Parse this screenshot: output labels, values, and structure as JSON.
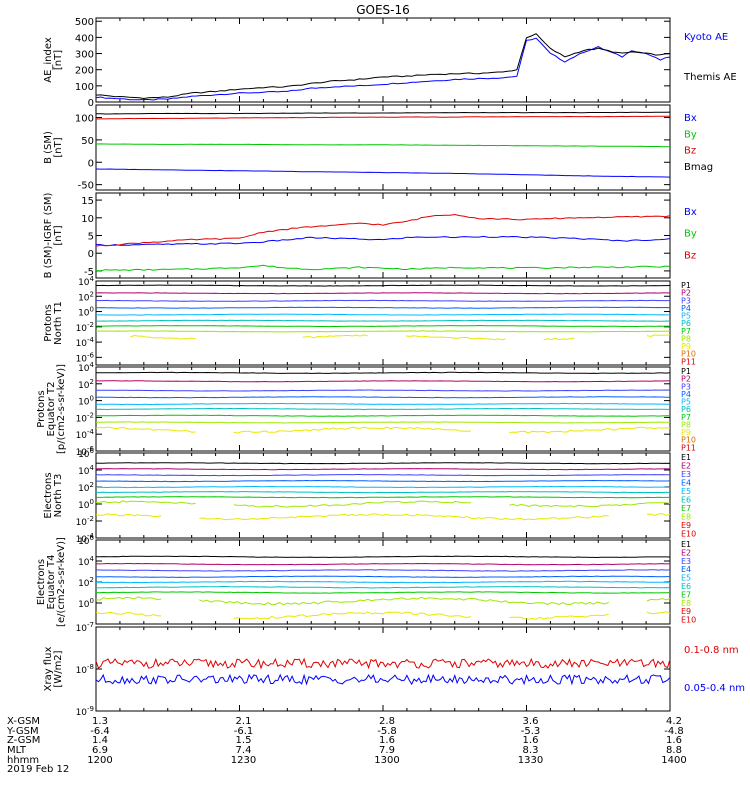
{
  "title": "GOES-16",
  "colors": {
    "black": "#000000",
    "blue": "#0000ff",
    "green": "#00c800",
    "red": "#e00000",
    "p": [
      "#000000",
      "#b0006c",
      "#4040ff",
      "#0060ff",
      "#00b8ff",
      "#00c0c0",
      "#00c800",
      "#9ee800",
      "#e8e800",
      "#e07000",
      "#e00000",
      "#e00000"
    ]
  },
  "chart_data": [
    {
      "type": "line",
      "panel": "ae",
      "ylabel": "AE_index [nT]",
      "ylim": [
        0,
        520
      ],
      "ytick_labels": [
        "500",
        "400",
        "300",
        "200",
        "100",
        "0"
      ],
      "x": [
        1200,
        1205,
        1210,
        1215,
        1220,
        1225,
        1230,
        1235,
        1240,
        1245,
        1250,
        1255,
        1300,
        1305,
        1310,
        1315,
        1320,
        1325,
        1328,
        1330,
        1332,
        1335,
        1338,
        1342,
        1345,
        1350,
        1352,
        1355,
        1358,
        1400
      ],
      "series": [
        {
          "name": "Kyoto AE",
          "color": "blue",
          "values": [
            30,
            20,
            12,
            18,
            35,
            45,
            55,
            60,
            65,
            85,
            95,
            100,
            110,
            120,
            130,
            140,
            145,
            150,
            160,
            380,
            395,
            300,
            250,
            310,
            340,
            280,
            320,
            300,
            260,
            280
          ]
        },
        {
          "name": "Themis AE",
          "color": "black",
          "values": [
            45,
            32,
            25,
            30,
            55,
            65,
            80,
            90,
            95,
            115,
            130,
            140,
            155,
            160,
            170,
            175,
            178,
            185,
            200,
            400,
            420,
            330,
            280,
            320,
            330,
            300,
            310,
            300,
            290,
            300
          ]
        }
      ]
    },
    {
      "type": "line",
      "panel": "bsm",
      "ylabel": "B (SM) [nT]",
      "ylim": [
        -62,
        128
      ],
      "ytick_labels": [
        "100",
        "50",
        "0",
        "-50"
      ],
      "x": [
        1200,
        1215,
        1230,
        1245,
        1300,
        1315,
        1330,
        1345,
        1400
      ],
      "series": [
        {
          "name": "Bx",
          "color": "blue",
          "values": [
            -15,
            -17,
            -19,
            -21,
            -23,
            -25,
            -28,
            -31,
            -33
          ]
        },
        {
          "name": "By",
          "color": "green",
          "values": [
            41,
            40,
            40,
            39,
            39,
            38,
            37,
            36,
            35
          ]
        },
        {
          "name": "Bz",
          "color": "red",
          "values": [
            97,
            98,
            99,
            100,
            101,
            101,
            102,
            102,
            103
          ]
        },
        {
          "name": "Bmag",
          "color": "black",
          "values": [
            108,
            109,
            109,
            110,
            110,
            111,
            111,
            111,
            112
          ]
        }
      ]
    },
    {
      "type": "line",
      "panel": "bdiff",
      "ylabel": "B (SM)-IGRF (SM) [nT]",
      "ylim": [
        -7,
        17
      ],
      "ytick_labels": [
        "15",
        "10",
        "5",
        "0",
        "-5"
      ],
      "x": [
        1200,
        1210,
        1220,
        1225,
        1230,
        1235,
        1240,
        1245,
        1250,
        1255,
        1300,
        1305,
        1310,
        1315,
        1320,
        1330,
        1340,
        1350,
        1400
      ],
      "series": [
        {
          "name": "Bx",
          "color": "blue",
          "values": [
            2.3,
            2.4,
            2.6,
            2.7,
            2.8,
            3.2,
            3.8,
            4.4,
            4.2,
            4.0,
            3.8,
            4.4,
            4.6,
            4.5,
            4.7,
            4.5,
            4.2,
            3.5,
            4.0
          ]
        },
        {
          "name": "By",
          "color": "green",
          "values": [
            -4.8,
            -4.7,
            -4.5,
            -4.3,
            -4.0,
            -3.5,
            -4.2,
            -4.5,
            -4.3,
            -4.0,
            -4.2,
            -4.5,
            -4.3,
            -4.0,
            -4.1,
            -4.2,
            -4.0,
            -3.9,
            -3.8
          ]
        },
        {
          "name": "Bz",
          "color": "red",
          "values": [
            2.0,
            3.0,
            3.8,
            4.0,
            4.2,
            6.0,
            6.8,
            7.5,
            7.8,
            8.5,
            8.0,
            9.0,
            10.5,
            11.0,
            9.8,
            9.5,
            10.0,
            10.2,
            10.5
          ]
        }
      ]
    },
    {
      "type": "line",
      "panel": "p1",
      "log": true,
      "ylabel": "Protons North T1",
      "ylim_exp": [
        -7,
        4
      ],
      "ytick_labels": [
        "10^4",
        "10^2",
        "10^0",
        "10^-2",
        "10^-4",
        "10^-6"
      ],
      "channels": [
        "P1",
        "P2",
        "P3",
        "P4",
        "P5",
        "P6",
        "P7",
        "P8",
        "P9",
        "P10",
        "P11"
      ],
      "log10_levels": [
        3.4,
        2.4,
        1.4,
        0.5,
        -0.4,
        -1.2,
        -1.9,
        -2.6,
        -3.4,
        null,
        null
      ]
    },
    {
      "type": "line",
      "panel": "p2",
      "log": true,
      "ylabel": "Protons Equator T2 [p/(cm2-s-sr-keV)]",
      "ylim_exp": [
        -6,
        4
      ],
      "ytick_labels": [
        "10^4",
        "10^2",
        "10^0",
        "10^-2",
        "10^-4",
        "10^-6"
      ],
      "channels": [
        "P1",
        "P2",
        "P3",
        "P4",
        "P5",
        "P6",
        "P7",
        "P8",
        "P9",
        "P10",
        "P11"
      ],
      "log10_levels": [
        3.3,
        2.3,
        1.2,
        0.4,
        -0.4,
        -1.0,
        -1.8,
        -2.6,
        -3.5,
        null,
        null
      ]
    },
    {
      "type": "line",
      "panel": "e1",
      "log": true,
      "ylabel": "Electrons North T3",
      "ylim_exp": [
        -4,
        6
      ],
      "ytick_labels": [
        "10^6",
        "10^4",
        "10^2",
        "10^0",
        "10^-2",
        "10^-4"
      ],
      "channels": [
        "E1",
        "E2",
        "E3",
        "E4",
        "E5",
        "E6",
        "E7",
        "E8",
        "E9",
        "E10"
      ],
      "log10_levels": [
        4.8,
        4.1,
        3.4,
        2.7,
        2.0,
        1.4,
        0.8,
        0.0,
        -1.5,
        null
      ]
    },
    {
      "type": "line",
      "panel": "e2",
      "log": true,
      "ylabel": "Electrons Equator T4 [e/(cm2-s-sr-keV)]",
      "ylim_exp": [
        -2,
        6
      ],
      "ytick_labels": [
        "10^6",
        "10^4",
        "10^2",
        "10^0"
      ],
      "channels": [
        "E1",
        "E2",
        "E3",
        "E4",
        "E5",
        "E6",
        "E7",
        "E8",
        "E9",
        "E10"
      ],
      "log10_levels": [
        4.4,
        3.7,
        3.1,
        2.5,
        2.0,
        1.5,
        1.0,
        0.2,
        -1.2,
        null
      ]
    },
    {
      "type": "line",
      "panel": "xray",
      "log": true,
      "ylabel": "Xray flux [W/m2]",
      "ylim_exp": [
        -9,
        -7
      ],
      "ytick_labels": [
        "10^-7",
        "10^-8",
        "10^-9"
      ],
      "series": [
        {
          "name": "0.1-0.8 nm",
          "color": "red",
          "log10_level": -7.87
        },
        {
          "name": "0.05-0.4 nm",
          "color": "blue",
          "log10_level": -8.25
        }
      ]
    }
  ],
  "xaxis": {
    "labels": [
      "X-GSM",
      "Y-GSM",
      "Z-GSM",
      "MLT",
      "hhmm",
      "2019 Feb 12"
    ],
    "columns": [
      [
        "1.3",
        "-6.4",
        "1.4",
        "6.9",
        "1200"
      ],
      [
        "2.1",
        "-6.1",
        "1.5",
        "7.4",
        "1230"
      ],
      [
        "2.8",
        "-5.8",
        "1.6",
        "7.9",
        "1300"
      ],
      [
        "3.6",
        "-5.3",
        "1.6",
        "8.3",
        "1330"
      ],
      [
        "4.2",
        "-4.8",
        "1.6",
        "8.8",
        "1400"
      ]
    ]
  }
}
